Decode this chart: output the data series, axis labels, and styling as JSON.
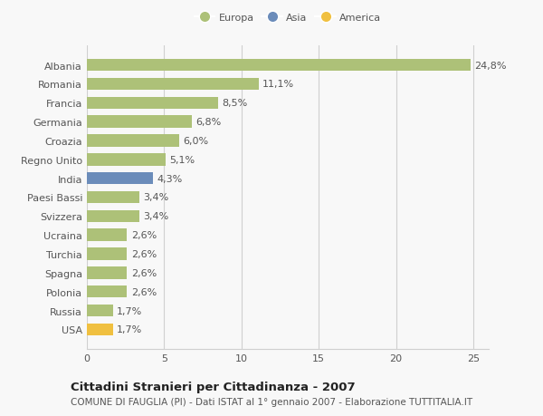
{
  "categories": [
    "Albania",
    "Romania",
    "Francia",
    "Germania",
    "Croazia",
    "Regno Unito",
    "India",
    "Paesi Bassi",
    "Svizzera",
    "Ucraina",
    "Turchia",
    "Spagna",
    "Polonia",
    "Russia",
    "USA"
  ],
  "values": [
    24.8,
    11.1,
    8.5,
    6.8,
    6.0,
    5.1,
    4.3,
    3.4,
    3.4,
    2.6,
    2.6,
    2.6,
    2.6,
    1.7,
    1.7
  ],
  "labels": [
    "24,8%",
    "11,1%",
    "8,5%",
    "6,8%",
    "6,0%",
    "5,1%",
    "4,3%",
    "3,4%",
    "3,4%",
    "2,6%",
    "2,6%",
    "2,6%",
    "2,6%",
    "1,7%",
    "1,7%"
  ],
  "colors": [
    "#adc178",
    "#adc178",
    "#adc178",
    "#adc178",
    "#adc178",
    "#adc178",
    "#6b8cba",
    "#adc178",
    "#adc178",
    "#adc178",
    "#adc178",
    "#adc178",
    "#adc178",
    "#adc178",
    "#f0c040"
  ],
  "legend": [
    {
      "label": "Europa",
      "color": "#adc178"
    },
    {
      "label": "Asia",
      "color": "#6b8cba"
    },
    {
      "label": "America",
      "color": "#f0c040"
    }
  ],
  "xlim": [
    0,
    26
  ],
  "xticks": [
    0,
    5,
    10,
    15,
    20,
    25
  ],
  "title": "Cittadini Stranieri per Cittadinanza - 2007",
  "subtitle": "COMUNE DI FAUGLIA (PI) - Dati ISTAT al 1° gennaio 2007 - Elaborazione TUTTITALIA.IT",
  "background_color": "#f8f8f8",
  "bar_height": 0.65,
  "grid_color": "#d0d0d0",
  "label_fontsize": 8.0,
  "ytick_fontsize": 8.0,
  "xtick_fontsize": 8.0,
  "title_fontsize": 9.5,
  "subtitle_fontsize": 7.5
}
